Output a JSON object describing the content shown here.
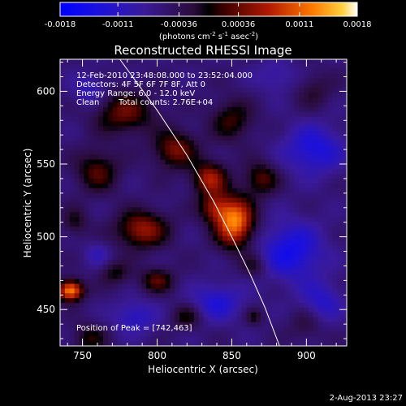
{
  "chart_data": {
    "type": "heatmap",
    "title": "Reconstructed RHESSI Image",
    "xlabel": "Heliocentric X (arcsec)",
    "ylabel": "Heliocentric Y (arcsec)",
    "xlim": [
      735,
      927
    ],
    "ylim": [
      425,
      622
    ],
    "x_ticks": [
      750,
      800,
      850,
      900
    ],
    "y_ticks": [
      450,
      500,
      550,
      600
    ],
    "colorbar": {
      "range": [
        -0.0018,
        0.0018
      ],
      "tick_values": [
        -0.0018,
        -0.0011,
        -0.00036,
        0.00036,
        0.0011,
        0.0018
      ],
      "tick_labels": [
        "-0.0018",
        "-0.0011",
        "-0.00036",
        "0.00036",
        "0.0011",
        "0.0018"
      ],
      "units_prefix": "(photons cm",
      "units_exp1": "-2",
      "units_mid": " s",
      "units_exp2": "-1",
      "units_mid2": " asec",
      "units_exp3": "-2",
      "units_suffix": ")"
    },
    "annotations": {
      "time_range": "12-Feb-2010 23:48:08.000 to 23:52:04.000",
      "detectors": "Detectors: 4F 5F 6F 7F 8F, Att 0",
      "energy": "Energy Range: 6.0 - 12.0 keV",
      "method": "Clean",
      "total_counts": "Total counts: 2.76E+04",
      "peak": "Position of Peak = [742,463]"
    },
    "peak_position": [
      742,
      463
    ],
    "sources": [
      {
        "x": 852,
        "y": 510,
        "amp": 0.00185,
        "sx": 9,
        "sy": 12
      },
      {
        "x": 838,
        "y": 520,
        "amp": 0.0009,
        "sx": 7,
        "sy": 7
      },
      {
        "x": 742,
        "y": 463,
        "amp": 0.0019,
        "sx": 6,
        "sy": 5
      },
      {
        "x": 790,
        "y": 505,
        "amp": 0.00115,
        "sx": 12,
        "sy": 9
      },
      {
        "x": 812,
        "y": 560,
        "amp": 0.001,
        "sx": 10,
        "sy": 9
      },
      {
        "x": 778,
        "y": 585,
        "amp": 0.0009,
        "sx": 14,
        "sy": 10
      },
      {
        "x": 850,
        "y": 580,
        "amp": 0.0007,
        "sx": 10,
        "sy": 10
      },
      {
        "x": 835,
        "y": 540,
        "amp": 0.0012,
        "sx": 8,
        "sy": 8
      },
      {
        "x": 760,
        "y": 545,
        "amp": 0.0008,
        "sx": 10,
        "sy": 10
      },
      {
        "x": 870,
        "y": 540,
        "amp": 0.0008,
        "sx": 8,
        "sy": 8
      },
      {
        "x": 800,
        "y": 470,
        "amp": 0.0008,
        "sx": 8,
        "sy": 6
      },
      {
        "x": 755,
        "y": 430,
        "amp": 0.0006,
        "sx": 8,
        "sy": 7
      },
      {
        "x": 820,
        "y": 445,
        "amp": 0.0006,
        "sx": 7,
        "sy": 6
      },
      {
        "x": 865,
        "y": 480,
        "amp": 0.0005,
        "sx": 6,
        "sy": 6
      },
      {
        "x": 900,
        "y": 440,
        "amp": 0.0004,
        "sx": 8,
        "sy": 8
      },
      {
        "x": 905,
        "y": 600,
        "amp": 0.0004,
        "sx": 9,
        "sy": 9
      },
      {
        "x": 865,
        "y": 445,
        "amp": 0.0005,
        "sx": 4,
        "sy": 4
      },
      {
        "x": 772,
        "y": 475,
        "amp": 0.00055,
        "sx": 7,
        "sy": 6
      },
      {
        "x": 745,
        "y": 510,
        "amp": 0.0005,
        "sx": 6,
        "sy": 7
      },
      {
        "x": 890,
        "y": 490,
        "amp": -0.0009,
        "sx": 15,
        "sy": 14
      },
      {
        "x": 905,
        "y": 560,
        "amp": -0.0008,
        "sx": 14,
        "sy": 12
      },
      {
        "x": 840,
        "y": 455,
        "amp": -0.0007,
        "sx": 12,
        "sy": 9
      },
      {
        "x": 755,
        "y": 600,
        "amp": -0.0005,
        "sx": 8,
        "sy": 8
      },
      {
        "x": 785,
        "y": 445,
        "amp": -0.0006,
        "sx": 10,
        "sy": 8
      },
      {
        "x": 760,
        "y": 488,
        "amp": -0.0004,
        "sx": 6,
        "sy": 6
      },
      {
        "x": 880,
        "y": 610,
        "amp": -0.0004,
        "sx": 10,
        "sy": 8
      },
      {
        "x": 910,
        "y": 455,
        "amp": -0.0006,
        "sx": 10,
        "sy": 10
      }
    ],
    "limb_curve": [
      [
        775,
        622
      ],
      [
        800,
        587
      ],
      [
        820,
        556
      ],
      [
        838,
        524
      ],
      [
        850,
        500
      ],
      [
        862,
        475
      ],
      [
        872,
        452
      ],
      [
        882,
        425
      ]
    ]
  },
  "footer": {
    "date": "2-Aug-2013 23:27"
  }
}
